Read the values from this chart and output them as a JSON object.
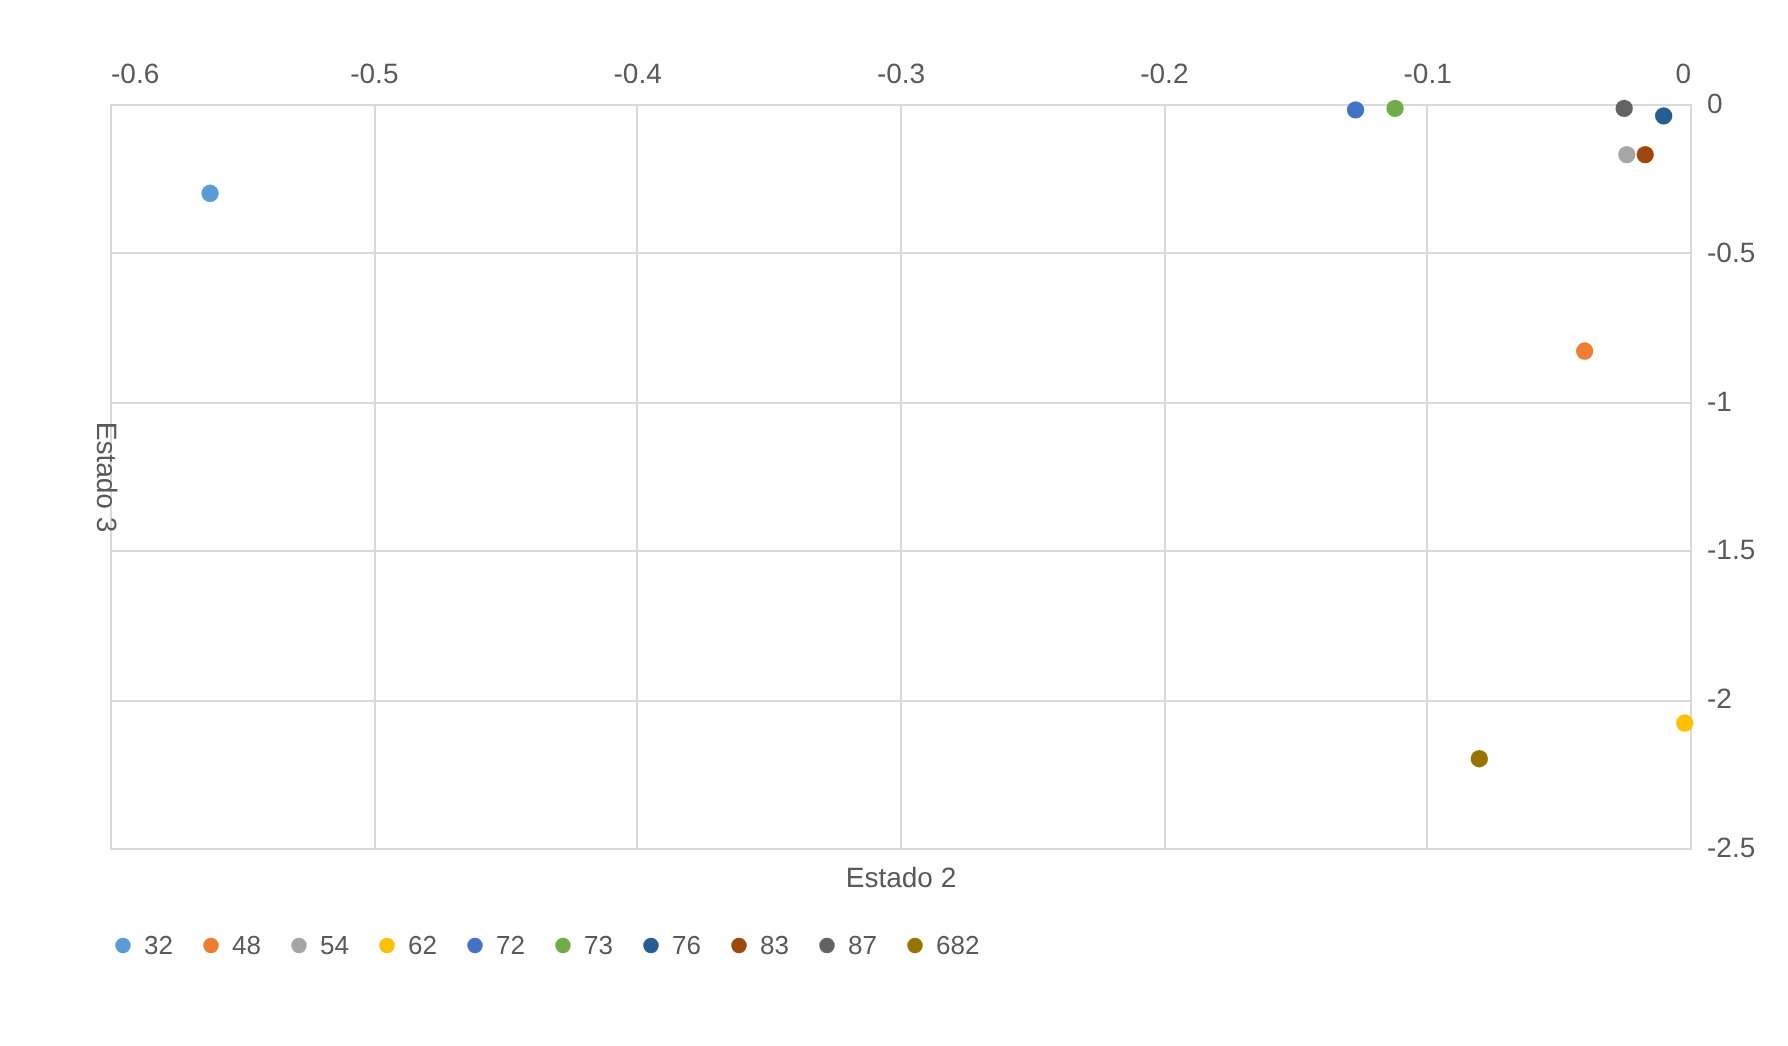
{
  "chart_data": {
    "type": "scatter",
    "xlabel": "Estado 2",
    "ylabel": "Estado 3",
    "xlim": [
      -0.6,
      0
    ],
    "xticks": [
      -0.6,
      -0.5,
      -0.4,
      -0.3,
      -0.2,
      -0.1,
      0
    ],
    "ylim": [
      -2.5,
      0
    ],
    "yticks": [
      -2.5,
      -2,
      -1.5,
      -1,
      -0.5,
      0
    ],
    "grid": true,
    "legend": "bottom",
    "marker": "circle",
    "series": [
      {
        "name": "32",
        "color": "#5b9bd5",
        "x": [
          -0.562
        ],
        "values": [
          -0.3
        ]
      },
      {
        "name": "48",
        "color": "#ed7d31",
        "x": [
          -0.04
        ],
        "values": [
          -0.83
        ]
      },
      {
        "name": "54",
        "color": "#a5a5a5",
        "x": [
          -0.024
        ],
        "values": [
          -0.17
        ]
      },
      {
        "name": "62",
        "color": "#ffc000",
        "x": [
          -0.002
        ],
        "values": [
          -2.08
        ]
      },
      {
        "name": "72",
        "color": "#4472c4",
        "x": [
          -0.127
        ],
        "values": [
          -0.02
        ]
      },
      {
        "name": "73",
        "color": "#70ad47",
        "x": [
          -0.112
        ],
        "values": [
          -0.015
        ]
      },
      {
        "name": "76",
        "color": "#255e91",
        "x": [
          -0.01
        ],
        "values": [
          -0.04
        ]
      },
      {
        "name": "83",
        "color": "#9e480e",
        "x": [
          -0.017
        ],
        "values": [
          -0.17
        ]
      },
      {
        "name": "87",
        "color": "#636363",
        "x": [
          -0.025
        ],
        "values": [
          -0.015
        ]
      },
      {
        "name": "682",
        "color": "#997300",
        "x": [
          -0.08
        ],
        "values": [
          -2.2
        ]
      }
    ]
  }
}
